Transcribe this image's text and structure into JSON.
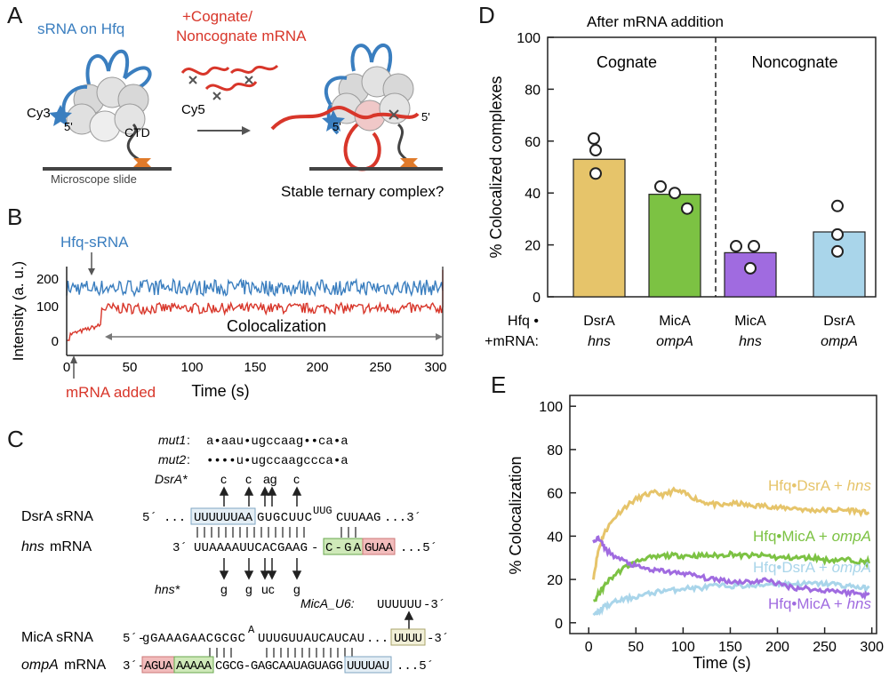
{
  "panel_labels": {
    "a": "A",
    "b": "B",
    "c": "C",
    "d": "D",
    "e": "E"
  },
  "colors": {
    "blue": "#3a7ebf",
    "red": "#d8362a",
    "gold": "#e6c46a",
    "green": "#7cc243",
    "purple": "#a06be0",
    "lightblue": "#a9d5ea",
    "grey": "#555555"
  },
  "panel_a": {
    "srna_label": "sRNA on Hfq",
    "mrna_label_line1": "+Cognate/",
    "mrna_label_line2": "Noncognate mRNA",
    "cy3": "Cy3",
    "cy5": "Cy5",
    "five_prime": "5'",
    "ctd": "CTD",
    "slide": "Microscope slide",
    "question": "Stable ternary complex?"
  },
  "panel_b": {
    "hfq_label": "Hfq-sRNA",
    "mrna_added": "mRNA added",
    "coloc": "Colocalization",
    "ylabel": "Intensity (a. u.)",
    "xlabel": "Time (s)",
    "yticks": [
      "200",
      "100",
      "0"
    ],
    "xticks": [
      "0",
      "50",
      "100",
      "150",
      "200",
      "250",
      "300"
    ]
  },
  "panel_c": {
    "mut1_label": "mut1",
    "mut1_seq": "a•aau•ugccaag••ca•a",
    "mut2_label": "mut2",
    "mut2_seq": "••••u•ugccaagccca•a",
    "dsra_star_label": "DsrA*",
    "dsra_star_subs": [
      "c",
      "c",
      "ag",
      "c"
    ],
    "dsra_srna_label": "DsrA sRNA",
    "dsra_5": "5´",
    "dsra_ellipsis": "...",
    "dsra_boxed": "UUUUUUAA",
    "dsra_seq_rest": "GUGCUUC",
    "dsra_loop": "UUG",
    "dsra_seq_end": "CUUAAG",
    "dsra_3": "...3´",
    "hns_mrna_label": "hns",
    "hns_mrna_suffix": "mRNA",
    "hns_3": "3´",
    "hns_seq": "UUAAAAUUCACGAAG",
    "hns_dash": "-",
    "hns_boxed_green": "C-GA",
    "hns_boxed_red": "GUAA",
    "hns_5": "...5´",
    "hns_star_label": "hns*",
    "hns_star_subs": [
      "g",
      "g",
      "uc",
      "g"
    ],
    "micA_u6_label": "MicA_U6:",
    "micA_u6_seq": "UUUUUU",
    "micA_u6_3": "-3´",
    "mica_srna_label": "MicA sRNA",
    "mica_5": "5´-",
    "mica_seq": "gGAAAGAACGCGC",
    "mica_bulge": "A",
    "mica_seq2": "UUUGUUAUCAUCAU",
    "mica_ellipsis": "...",
    "mica_boxed": "UUUU",
    "mica_3": "-3´",
    "ompa_label": "ompA",
    "ompa_suffix": "mRNA",
    "ompa_3": "3´-",
    "ompa_boxed_red": "AGUA",
    "ompa_boxed_green": "AAAAA",
    "ompa_seq": "CGCG-GAGCAAUAGUAGG",
    "ompa_boxed_blue": "UUUUAU",
    "ompa_5": "...5´"
  },
  "panel_d": {
    "row1_label": "Hfq •",
    "row2_label": "+mRNA:",
    "cognate": "Cognate",
    "noncognate": "Noncognate",
    "bar_labels_top": [
      "DsrA",
      "MicA",
      "MicA",
      "DsrA"
    ],
    "bar_labels_bottom": [
      "hns",
      "ompA",
      "hns",
      "ompA"
    ]
  },
  "chart_data": [
    {
      "type": "bar",
      "title": "After mRNA addition",
      "ylabel": "% Colocalized complexes",
      "ylim": [
        0,
        100
      ],
      "yticks": [
        "0",
        "20",
        "40",
        "60",
        "80",
        "100"
      ],
      "categories": [
        "DsrA + hns",
        "MicA + ompA",
        "MicA + hns",
        "DsrA + ompA"
      ],
      "groups": [
        "Cognate",
        "Cognate",
        "Noncognate",
        "Noncognate"
      ],
      "values": [
        53,
        39.5,
        17,
        25
      ],
      "replicates": [
        [
          61,
          56.5,
          47.5
        ],
        [
          42.5,
          40,
          34
        ],
        [
          19.5,
          19.5,
          11
        ],
        [
          35,
          24,
          17.5
        ]
      ],
      "bar_colors": [
        "#e6c46a",
        "#7cc243",
        "#a06be0",
        "#a9d5ea"
      ]
    },
    {
      "type": "line",
      "ylabel": "% Colocalization",
      "xlabel": "Time (s)",
      "xlim": [
        -20,
        305
      ],
      "ylim": [
        -5,
        105
      ],
      "xticks": [
        "0",
        "50",
        "100",
        "150",
        "200",
        "250",
        "300"
      ],
      "yticks": [
        "0",
        "20",
        "40",
        "60",
        "80",
        "100"
      ],
      "x": [
        5,
        10,
        15,
        20,
        30,
        40,
        50,
        60,
        70,
        80,
        90,
        100,
        110,
        120,
        130,
        140,
        150,
        160,
        170,
        180,
        190,
        200,
        210,
        220,
        230,
        240,
        250,
        260,
        270,
        280,
        290,
        297
      ],
      "series": [
        {
          "name": "Hfq•DsrA + hns",
          "label_main": "Hfq•DsrA + ",
          "label_ital": "hns",
          "color": "#e6c46a",
          "values": [
            21,
            33,
            40,
            44,
            50,
            54,
            57,
            59,
            60,
            59,
            61,
            60,
            58,
            56,
            55,
            54,
            55,
            55,
            54,
            54,
            54,
            53,
            53,
            53,
            52,
            52,
            52,
            52,
            52,
            52,
            51,
            51
          ]
        },
        {
          "name": "Hfq•MicA + ompA",
          "label_main": "Hfq•MicA + ",
          "label_ital": "ompA",
          "color": "#7cc243",
          "values": [
            9,
            13,
            16,
            19,
            23,
            26,
            28,
            30,
            30,
            31,
            31,
            31,
            31,
            31,
            31,
            31,
            32,
            31,
            31,
            31,
            31,
            30,
            30,
            30,
            30,
            30,
            29,
            29,
            29,
            29,
            28,
            28
          ]
        },
        {
          "name": "Hfq•DsrA + ompA",
          "label_main": "Hfq•DsrA + ",
          "label_ital": "ompA",
          "color": "#a9d5ea",
          "values": [
            3,
            5,
            7,
            8,
            10,
            11,
            12,
            13,
            14,
            15,
            15,
            16,
            16,
            16,
            17,
            17,
            17,
            17,
            17,
            17,
            18,
            18,
            18,
            18,
            18,
            18,
            18,
            18,
            17,
            17,
            16,
            16
          ]
        },
        {
          "name": "Hfq•MicA + hns",
          "label_main": "Hfq•MicA + ",
          "label_ital": "hns",
          "color": "#a06be0",
          "values": [
            38,
            39,
            36,
            33,
            30,
            28,
            26,
            25,
            24,
            24,
            23,
            23,
            22,
            21,
            20,
            20,
            19,
            19,
            19,
            19,
            20,
            18,
            17,
            16,
            16,
            15,
            15,
            15,
            14,
            14,
            13,
            13
          ]
        }
      ]
    }
  ]
}
